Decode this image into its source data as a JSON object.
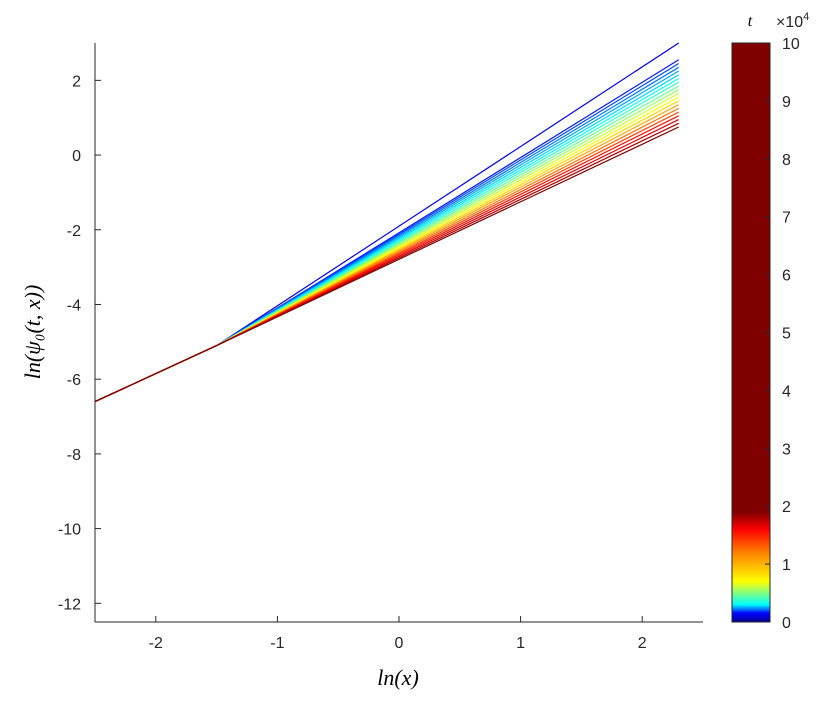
{
  "chart_data": {
    "type": "line",
    "xlabel": "ln(x)",
    "ylabel": "ln(ψ₀(t, x))",
    "xlim": [
      -2.5,
      2.5
    ],
    "ylim": [
      -12.5,
      3
    ],
    "x_ticks": [
      "-2",
      "-1",
      "0",
      "1",
      "2"
    ],
    "y_ticks": [
      "2",
      "0",
      "-2",
      "-4",
      "-6",
      "-8",
      "-10",
      "-12"
    ],
    "x_range": [
      -2.5,
      2.3
    ],
    "grid": false,
    "series_endpoints": {
      "x_start": -2.5,
      "y_start": -6.6,
      "x_end": 2.3,
      "y_end": [
        3.0,
        2.55,
        2.45,
        2.35,
        2.25,
        2.15,
        2.05,
        1.95,
        1.85,
        1.75,
        1.65,
        1.55,
        1.45,
        1.35,
        1.25,
        1.15,
        1.05,
        0.95,
        0.85,
        0.75
      ]
    },
    "colorbar": {
      "label": "t",
      "multiplier": "×10^4",
      "multiplier_base": "×10",
      "multiplier_exp": "4",
      "range": [
        0,
        10
      ],
      "ticks": [
        "10",
        "9",
        "8",
        "7",
        "6",
        "5",
        "4",
        "3",
        "2",
        "1",
        "0"
      ],
      "colormap": "jet"
    }
  }
}
